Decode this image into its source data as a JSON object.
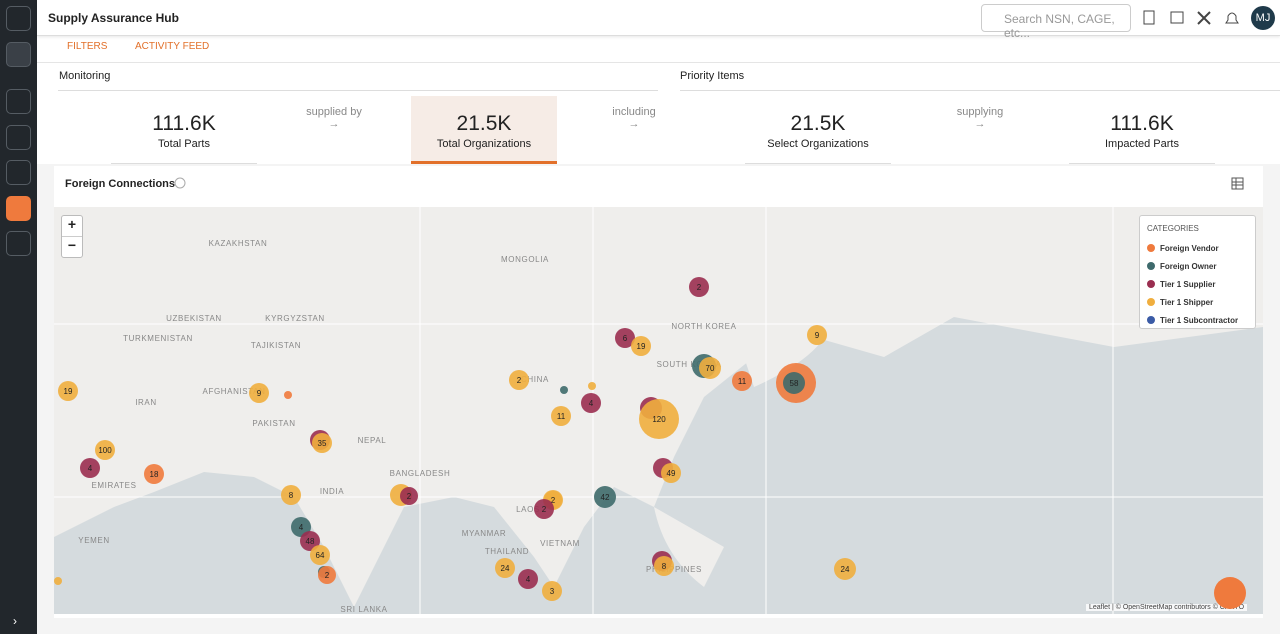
{
  "header": {
    "title": "Supply Assurance Hub",
    "search_placeholder": "Search NSN, CAGE, etc...",
    "avatar": "MJ"
  },
  "toolbar": {
    "filters": "FILTERS",
    "activity": "ACTIVITY FEED"
  },
  "monitoring": {
    "title": "Monitoring",
    "metrics": [
      {
        "value": "111.6K",
        "label": "Total Parts"
      },
      {
        "value": "21.5K",
        "label": "Total Organizations"
      }
    ],
    "connector": "supplied by"
  },
  "including": "including",
  "priority": {
    "title": "Priority Items",
    "metrics": [
      {
        "value": "21.5K",
        "label": "Select Organizations"
      },
      {
        "value": "111.6K",
        "label": "Impacted Parts"
      }
    ],
    "connector": "supplying"
  },
  "map": {
    "title": "Foreign Connections",
    "zoom_in": "+",
    "zoom_out": "−",
    "legend_title": "CATEGORIES",
    "categories": [
      {
        "name": "Foreign Vendor",
        "color": "#ef7a3d"
      },
      {
        "name": "Foreign Owner",
        "color": "#3e6a6c"
      },
      {
        "name": "Tier 1 Supplier",
        "color": "#9a2e50"
      },
      {
        "name": "Tier 1 Shipper",
        "color": "#f0ae3e"
      },
      {
        "name": "Tier 1 Subcontractor",
        "color": "#3b5ba6"
      }
    ],
    "countries": [
      "KAZAKHSTAN",
      "MONGOLIA",
      "UZBEKISTAN",
      "KYRGYZSTAN",
      "TURKMENISTAN",
      "TAJIKISTAN",
      "AFGHANISTAN",
      "IRAN",
      "PAKISTAN",
      "NEPAL",
      "CHINA",
      "NORTH KOREA",
      "SOUTH KOREA",
      "BANGLADESH",
      "INDIA",
      "MYANMAR",
      "LAOS",
      "THAILAND",
      "VIETNAM",
      "PHILIPPINES",
      "YEMEN",
      "EMIRATES",
      "SRI LANKA"
    ],
    "clusters": [
      2,
      6,
      19,
      9,
      19,
      9,
      2,
      11,
      4,
      120,
      70,
      11,
      58,
      35,
      4,
      100,
      18,
      8,
      2,
      49,
      2,
      2,
      42,
      4,
      48,
      64,
      2,
      24,
      4,
      3,
      8,
      24
    ],
    "attribution": "Leaflet | © OpenStreetMap contributors © CARTO"
  }
}
